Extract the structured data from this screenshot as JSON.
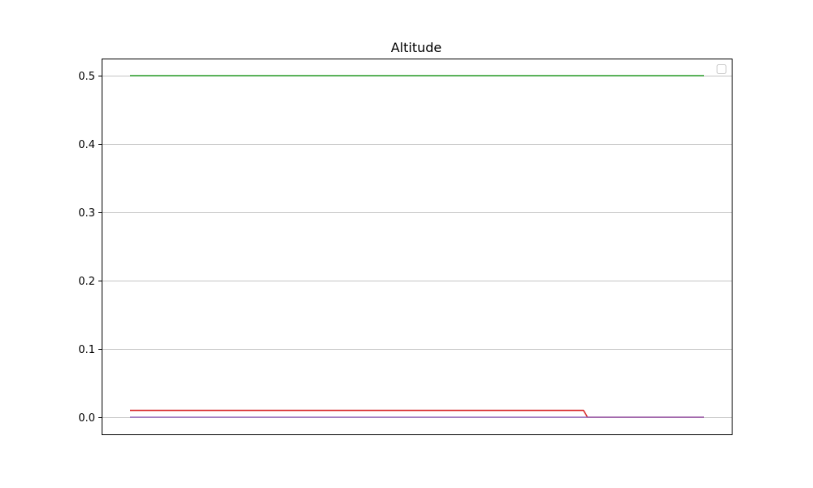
{
  "chart_data": {
    "type": "line",
    "title": "Altitude",
    "xlabel": "",
    "ylabel": "",
    "ylim": [
      -0.025,
      0.525
    ],
    "y_ticks": [
      0.0,
      0.1,
      0.2,
      0.3,
      0.4,
      0.5
    ],
    "y_tick_labels": [
      "0.0",
      "0.1",
      "0.2",
      "0.3",
      "0.4",
      "0.5"
    ],
    "x_ticks": [],
    "grid": "horizontal",
    "legend": "top-right, empty",
    "series": [
      {
        "color": "#2ca02c",
        "points": [
          [
            0,
            0.5
          ],
          [
            1,
            0.5
          ]
        ]
      },
      {
        "color": "#d62728",
        "points": [
          [
            0,
            0.01
          ],
          [
            0.79,
            0.01
          ],
          [
            0.797,
            0.0
          ],
          [
            1,
            0.0
          ]
        ]
      },
      {
        "color": "#9467bd",
        "points": [
          [
            0,
            0.0
          ],
          [
            1,
            0.0
          ]
        ]
      }
    ]
  }
}
